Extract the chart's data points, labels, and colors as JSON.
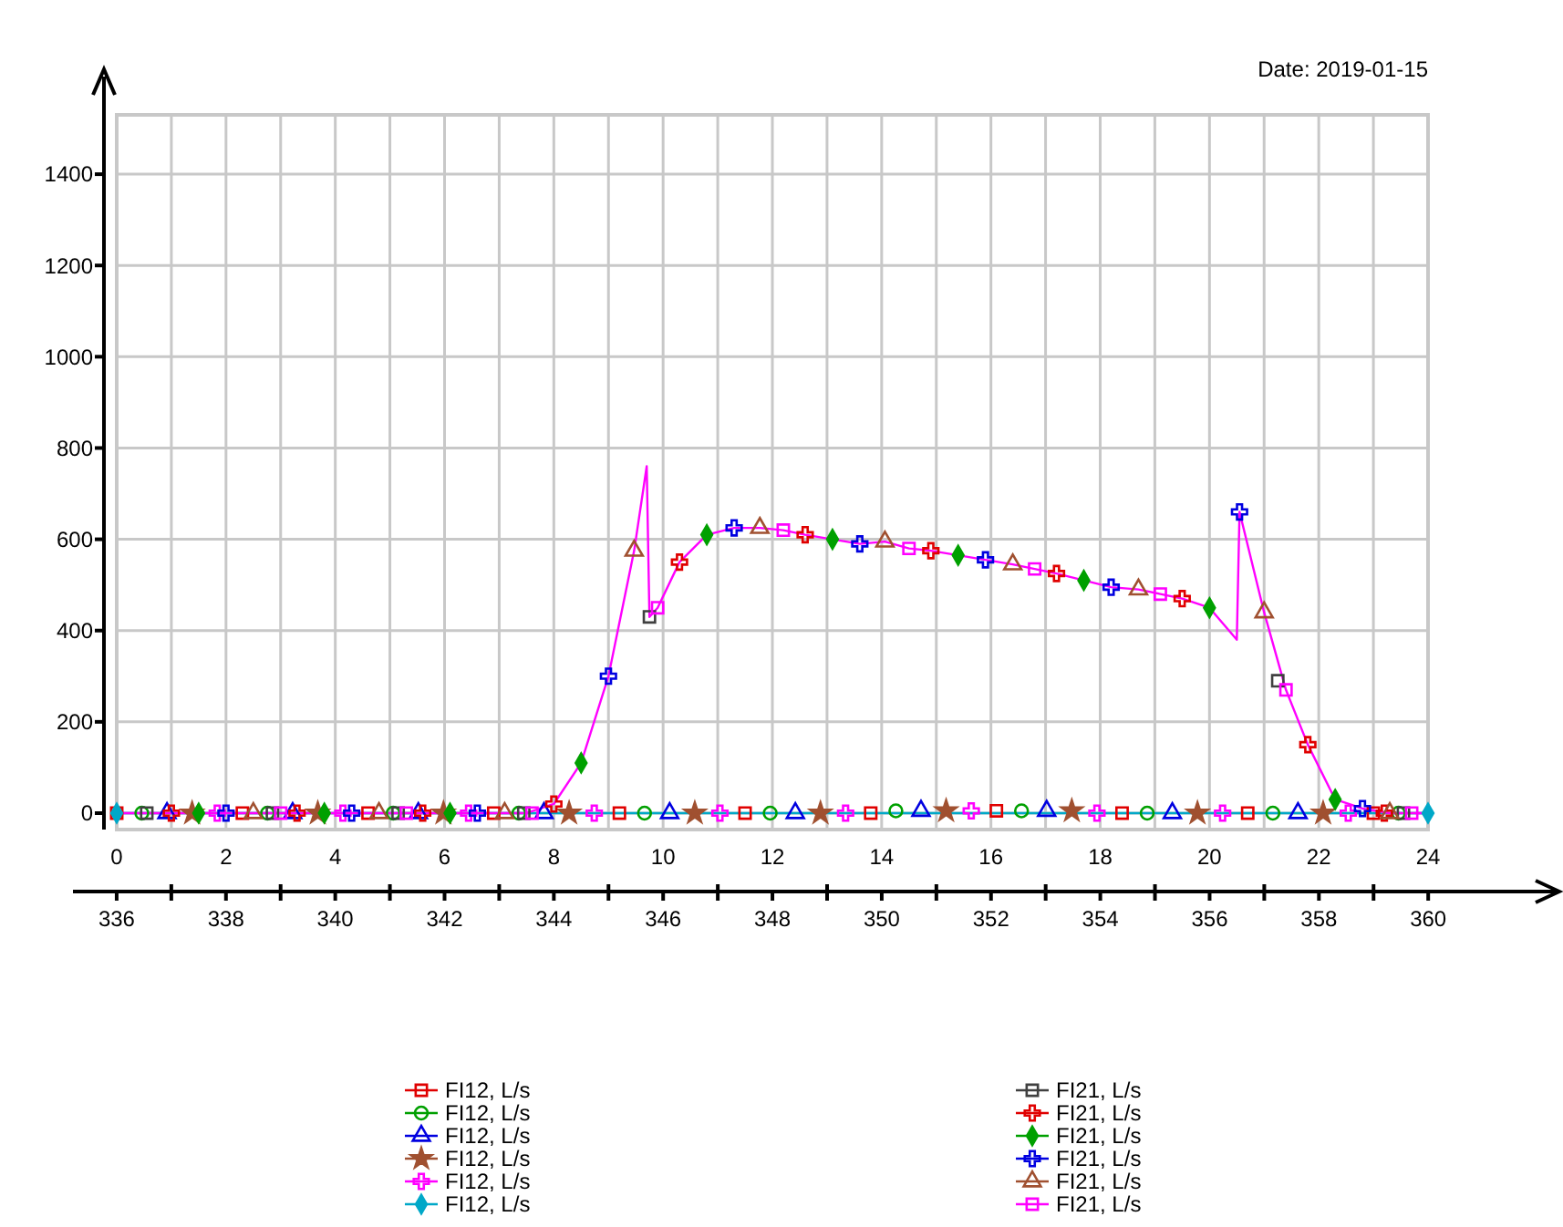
{
  "chart_data": {
    "type": "scatter",
    "annotations": [
      "Date: 2019-01-15"
    ],
    "xlim": [
      0,
      24
    ],
    "xticks": [
      0,
      2,
      4,
      6,
      8,
      10,
      12,
      14,
      16,
      18,
      20,
      22,
      24
    ],
    "x2lim": [
      335.2,
      362.4
    ],
    "x2ticks": [
      336,
      {
        "value": 337,
        "label": null
      },
      338,
      {
        "value": 339,
        "label": null
      },
      340,
      {
        "value": 341,
        "label": null
      },
      342,
      {
        "value": 343,
        "label": null
      },
      344,
      {
        "value": 345,
        "label": null
      },
      346,
      {
        "value": 347,
        "label": null
      },
      348,
      {
        "value": 349,
        "label": null
      },
      350,
      {
        "value": 351,
        "label": null
      },
      352,
      {
        "value": 353,
        "label": null
      },
      354,
      {
        "value": 355,
        "label": null
      },
      356,
      {
        "value": 357,
        "label": null
      },
      358,
      {
        "value": 359,
        "label": null
      },
      360
    ],
    "ylim": [
      -36,
      1530
    ],
    "yticks": [
      0,
      200,
      400,
      600,
      800,
      1000,
      1200,
      1400
    ],
    "grid": true,
    "legend": "bottom",
    "series": [
      {
        "type": "line",
        "color": "#00a8c8",
        "marker": "none",
        "x": [
          0,
          24
        ],
        "values": [
          0,
          0
        ]
      },
      {
        "type": "line",
        "color": "#ff00ff",
        "marker": "none",
        "x": [
          0,
          7.5,
          8,
          8.5,
          9,
          9.47,
          9.7,
          9.75,
          9.9,
          10.3,
          10.8,
          11.3,
          11.77,
          12.2,
          12.6,
          13.1,
          13.6,
          14.06,
          14.5,
          14.9,
          15.4,
          15.9,
          16.4,
          16.8,
          17.2,
          17.7,
          18.2,
          18.7,
          19.1,
          19.5,
          20,
          20.5,
          20.55,
          21,
          21.4,
          21.8,
          22.3,
          22.8,
          23.3,
          23.95
        ],
        "values": [
          0,
          0,
          20,
          110,
          300,
          575,
          760,
          430,
          450,
          550,
          610,
          625,
          625,
          620,
          610,
          600,
          590,
          595,
          580,
          575,
          565,
          555,
          545,
          535,
          525,
          510,
          495,
          490,
          480,
          470,
          450,
          380,
          660,
          440,
          270,
          150,
          30,
          10,
          0,
          0
        ]
      },
      {
        "name": "FI12, L/s",
        "color": "#e00000",
        "marker": "square",
        "x": [
          0,
          2.3,
          4.6,
          6.9,
          9.2,
          11.5,
          13.8,
          16.1,
          18.4,
          20.7,
          23
        ],
        "values": [
          0,
          0,
          0,
          0,
          0,
          0,
          0,
          5,
          0,
          0,
          0
        ]
      },
      {
        "name": "FI12, L/s",
        "color": "#00a000",
        "marker": "circle",
        "x": [
          0.46,
          2.76,
          5.06,
          7.36,
          9.66,
          11.96,
          14.26,
          16.56,
          18.86,
          21.16,
          23.46
        ],
        "values": [
          0,
          0,
          0,
          0,
          0,
          0,
          5,
          5,
          0,
          0,
          0
        ]
      },
      {
        "name": "FI12, L/s",
        "color": "#0000e0",
        "marker": "triangle",
        "x": [
          0.92,
          3.22,
          5.52,
          7.82,
          10.12,
          12.42,
          14.72,
          17.02,
          19.32,
          21.62
        ],
        "values": [
          0,
          0,
          0,
          0,
          0,
          0,
          5,
          5,
          0,
          0
        ]
      },
      {
        "name": "FI12, L/s",
        "color": "#a05030",
        "marker": "star",
        "x": [
          1.38,
          3.68,
          5.98,
          8.28,
          10.58,
          12.88,
          15.18,
          17.48,
          19.78,
          22.08
        ],
        "values": [
          0,
          0,
          0,
          0,
          0,
          0,
          5,
          5,
          0,
          0
        ]
      },
      {
        "name": "FI12, L/s",
        "color": "#ff00ff",
        "marker": "cross",
        "x": [
          1.84,
          4.14,
          6.44,
          8.74,
          11.04,
          13.34,
          15.64,
          17.94,
          20.24,
          22.54
        ],
        "values": [
          0,
          0,
          0,
          0,
          0,
          0,
          5,
          0,
          0,
          0
        ]
      },
      {
        "name": "FI12, L/s",
        "color": "#00a8c8",
        "marker": "diamond",
        "x": [
          0,
          24
        ],
        "values": [
          0,
          0
        ]
      },
      {
        "name": "FI21, L/s",
        "color": "#404040",
        "marker": "square",
        "x": [
          0.55,
          2.85,
          5.15,
          7.45,
          9.75,
          21.25,
          23.55
        ],
        "values": [
          0,
          0,
          0,
          0,
          430,
          290,
          0
        ]
      },
      {
        "name": "FI21, L/s",
        "color": "#e00000",
        "marker": "cross",
        "x": [
          1.0,
          3.3,
          5.6,
          8.0,
          10.3,
          12.6,
          14.9,
          17.2,
          19.5,
          21.8,
          23.2
        ],
        "values": [
          0,
          0,
          0,
          20,
          550,
          610,
          575,
          525,
          470,
          150,
          0
        ]
      },
      {
        "name": "FI21, L/s",
        "color": "#00a000",
        "marker": "diamond",
        "x": [
          1.5,
          3.8,
          6.1,
          8.5,
          10.8,
          13.1,
          15.4,
          17.7,
          20,
          22.3
        ],
        "values": [
          0,
          0,
          0,
          110,
          610,
          600,
          565,
          510,
          450,
          30
        ]
      },
      {
        "name": "FI21, L/s",
        "color": "#0000e0",
        "marker": "cross",
        "x": [
          2.0,
          4.3,
          6.6,
          9,
          11.3,
          13.6,
          15.9,
          18.2,
          20.55,
          22.8
        ],
        "values": [
          0,
          0,
          0,
          300,
          625,
          590,
          555,
          495,
          660,
          10
        ]
      },
      {
        "name": "FI21, L/s",
        "color": "#a05030",
        "marker": "triangle",
        "x": [
          2.5,
          4.8,
          7.1,
          9.47,
          11.77,
          14.06,
          16.4,
          18.7,
          21,
          23.3
        ],
        "values": [
          0,
          0,
          0,
          575,
          625,
          595,
          545,
          490,
          440,
          0
        ]
      },
      {
        "name": "FI21, L/s",
        "color": "#ff00ff",
        "marker": "square",
        "x": [
          3.0,
          5.3,
          7.6,
          9.9,
          12.2,
          14.5,
          16.8,
          19.1,
          21.4,
          23.7
        ],
        "values": [
          0,
          0,
          0,
          450,
          620,
          580,
          535,
          480,
          270,
          0
        ]
      }
    ]
  }
}
